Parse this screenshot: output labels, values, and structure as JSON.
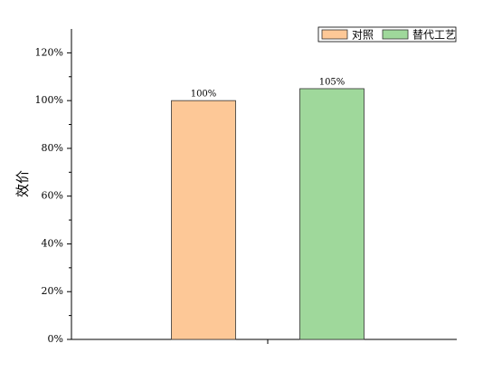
{
  "chart_data": {
    "type": "bar",
    "ylabel": "效价",
    "categories": [
      null
    ],
    "series": [
      {
        "name": "对照",
        "color": "#fdc897",
        "values": [
          100
        ],
        "value_labels": [
          "100%"
        ]
      },
      {
        "name": "替代工艺",
        "color": "#9fd89b",
        "values": [
          105
        ],
        "value_labels": [
          "105%"
        ]
      }
    ],
    "ylim": [
      0,
      130
    ],
    "yticks": [
      {
        "value": 0,
        "label": "0%"
      },
      {
        "value": 20,
        "label": "20%"
      },
      {
        "value": 40,
        "label": "40%"
      },
      {
        "value": 60,
        "label": "60%"
      },
      {
        "value": 80,
        "label": "80%"
      },
      {
        "value": 100,
        "label": "100%"
      },
      {
        "value": 120,
        "label": "120%"
      }
    ],
    "legend": "upper right",
    "grid": false
  }
}
